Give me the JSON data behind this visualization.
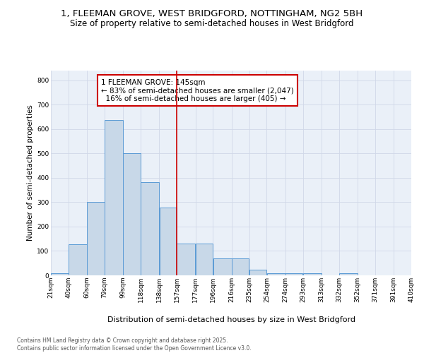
{
  "title_line1": "1, FLEEMAN GROVE, WEST BRIDGFORD, NOTTINGHAM, NG2 5BH",
  "title_line2": "Size of property relative to semi-detached houses in West Bridgford",
  "xlabel": "Distribution of semi-detached houses by size in West Bridgford",
  "ylabel": "Number of semi-detached properties",
  "footnote": "Contains HM Land Registry data © Crown copyright and database right 2025.\nContains public sector information licensed under the Open Government Licence v3.0.",
  "property_label": "1 FLEEMAN GROVE: 145sqm",
  "pct_smaller": 83,
  "count_smaller": 2047,
  "pct_larger": 16,
  "count_larger": 405,
  "bin_edges": [
    21,
    40,
    60,
    79,
    99,
    118,
    138,
    157,
    177,
    196,
    216,
    235,
    254,
    274,
    293,
    313,
    332,
    352,
    371,
    391,
    410
  ],
  "bar_heights": [
    8,
    128,
    302,
    636,
    502,
    382,
    278,
    130,
    130,
    70,
    70,
    22,
    10,
    8,
    8,
    0,
    8,
    0,
    0,
    0
  ],
  "bar_color": "#c8d8e8",
  "bar_edgecolor": "#5b9bd5",
  "vline_color": "#cc0000",
  "vline_x": 157,
  "ylim": [
    0,
    840
  ],
  "yticks": [
    0,
    100,
    200,
    300,
    400,
    500,
    600,
    700,
    800
  ],
  "grid_color": "#d0d8e8",
  "bg_color": "#eaf0f8",
  "annotation_box_color": "#cc0000",
  "title_fontsize": 9.5,
  "subtitle_fontsize": 8.5,
  "ylabel_fontsize": 7.5,
  "xlabel_fontsize": 8,
  "tick_fontsize": 6.5,
  "annot_fontsize": 7.5,
  "footnote_fontsize": 5.5
}
